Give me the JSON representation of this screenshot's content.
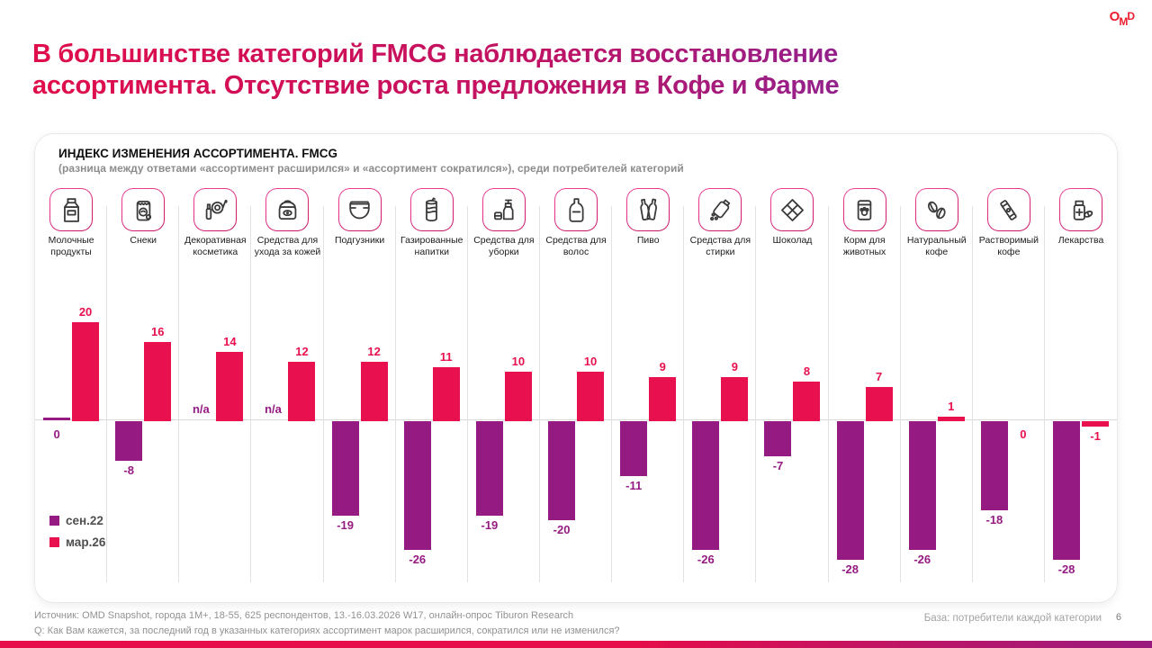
{
  "slide": {
    "title_lines": [
      "В большинстве категорий FMCG наблюдается восстановление",
      "ассортимента. Отсутствие роста предложения в Кофе и Фарме"
    ],
    "logo": "OMD",
    "page_number": "6"
  },
  "footer": {
    "source": "Источник: OMD Snapshot, города 1М+, 18-55, 625  респондентов, 13.-16.03.2026 W17, онлайн-опрос Tiburon Research",
    "question": "Q: Как Вам кажется, за последний год в указанных категориях ассортимент марок расширился, сократился или не изменился?",
    "base": "База: потребители каждой категории"
  },
  "colors": {
    "bar_sep22": "#951b82",
    "bar_mar26": "#e8104e",
    "title_gradient_start": "#e00d4b",
    "title_gradient_end": "#93218c",
    "logo_red": "#ea1c2c",
    "icon_border": "#c60d60"
  },
  "chart_data": {
    "type": "bar",
    "title": "ИНДЕКС ИЗМЕНЕНИЯ АССОРТИМЕНТА. FMCG",
    "subtitle": "(разница между ответами «ассортимент расширился» и «ассортимент сократился»), среди потребителей категорий",
    "categories": [
      "Молочные продукты",
      "Снеки",
      "Декоративная косметика",
      "Средства для ухода за кожей",
      "Подгузники",
      "Газированные напитки",
      "Средства для уборки",
      "Средства для волос",
      "Пиво",
      "Средства для стирки",
      "Шоколад",
      "Корм для животных",
      "Натуральный кофе",
      "Растворимый кофе",
      "Лекарства"
    ],
    "category_icons": [
      "milk-icon",
      "snacks-icon",
      "cosmetics-icon",
      "skincare-icon",
      "diapers-icon",
      "soda-icon",
      "cleaning-icon",
      "haircare-icon",
      "beer-icon",
      "laundry-icon",
      "chocolate-icon",
      "petfood-icon",
      "coffee-beans-icon",
      "instant-coffee-icon",
      "medicine-icon"
    ],
    "series": [
      {
        "name": "сен.22",
        "color": "#951b82",
        "values": [
          0,
          -8,
          null,
          null,
          -19,
          -26,
          -19,
          -20,
          -11,
          -26,
          -7,
          -28,
          -26,
          -18,
          -28
        ]
      },
      {
        "name": "мар.26",
        "color": "#e8104e",
        "values": [
          20,
          16,
          14,
          12,
          12,
          11,
          10,
          10,
          9,
          9,
          8,
          7,
          1,
          0,
          -1
        ]
      }
    ],
    "na_text": "n/a",
    "ylim": [
      -30,
      22
    ],
    "grid": "vertical category separators",
    "legend_position": "bottom-left inside plot"
  }
}
